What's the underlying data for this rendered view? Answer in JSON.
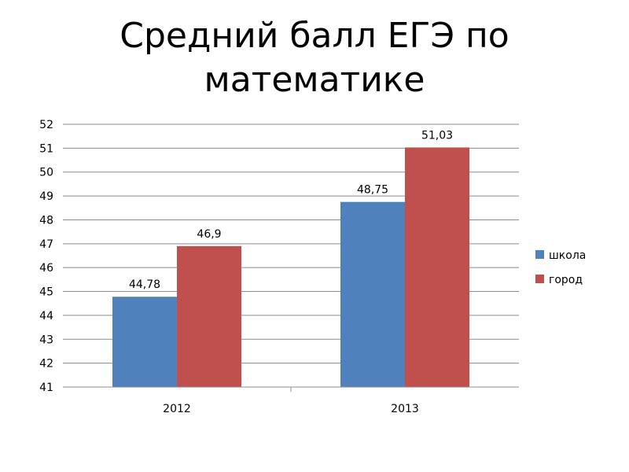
{
  "title": {
    "line1": "Средний балл ЕГЭ по",
    "line2": "математике"
  },
  "chart_data": {
    "type": "bar",
    "title": "Средний балл ЕГЭ по математике",
    "categories": [
      "2012",
      "2013"
    ],
    "series": [
      {
        "name": "школа",
        "values": [
          44.78,
          48.75
        ],
        "labels": [
          "44,78",
          "48,75"
        ],
        "color": "#4F81BD"
      },
      {
        "name": "город",
        "values": [
          46.9,
          51.03
        ],
        "labels": [
          "46,9",
          "51,03"
        ],
        "color": "#C0504D"
      }
    ],
    "ylim": [
      41,
      52
    ],
    "yticks": [
      41,
      42,
      43,
      44,
      45,
      46,
      47,
      48,
      49,
      50,
      51,
      52
    ],
    "xlabel": "",
    "ylabel": "",
    "grid": true,
    "legend": "right"
  }
}
